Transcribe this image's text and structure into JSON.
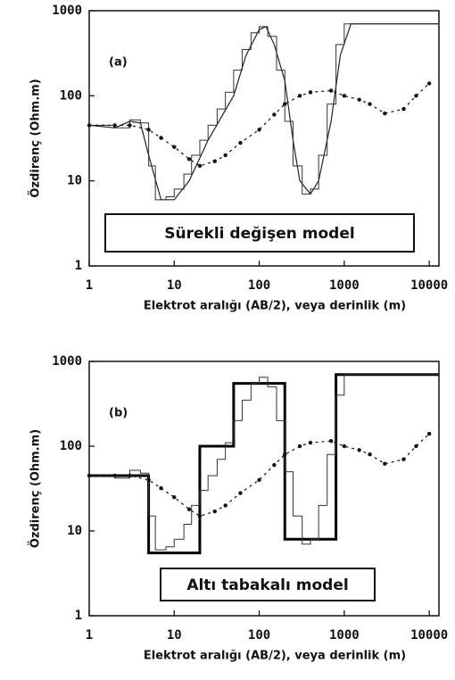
{
  "chart_data": [
    {
      "type": "line",
      "panel_label": "(a)",
      "model_label": "Sürekli değişen model",
      "xlabel": "Elektrot aralığı (AB/2), veya derinlik (m)",
      "ylabel": "Özdirenç  (Ohm.m)",
      "xlog": true,
      "ylog": true,
      "xlim": [
        1,
        13000
      ],
      "ylim": [
        1,
        1000
      ],
      "xticks": [
        1,
        10,
        100,
        1000,
        10000
      ],
      "yticks": [
        1,
        10,
        100,
        1000
      ],
      "series": [
        {
          "color": "#222222",
          "style": "solid",
          "width": 1.2,
          "x": [
            1,
            2,
            3,
            4,
            5,
            7,
            10,
            15,
            25,
            50,
            70,
            100,
            120,
            150,
            200,
            250,
            300,
            400,
            500,
            700,
            900,
            1200,
            13000
          ],
          "values": [
            45,
            42,
            50,
            48,
            20,
            6,
            6,
            10,
            30,
            100,
            300,
            600,
            650,
            400,
            150,
            30,
            10,
            7,
            10,
            50,
            300,
            700,
            700
          ]
        },
        {
          "color": "#333333",
          "style": "step",
          "width": 1,
          "bins": [
            1,
            2,
            3,
            4,
            5,
            6,
            8,
            10,
            13,
            16,
            20,
            25,
            32,
            40,
            50,
            63,
            80,
            100,
            126,
            160,
            200,
            250,
            320,
            400,
            500,
            630,
            800,
            1000,
            13000
          ],
          "values": [
            45,
            42,
            52,
            48,
            15,
            6,
            6.5,
            8,
            12,
            20,
            30,
            45,
            70,
            110,
            200,
            350,
            550,
            650,
            500,
            200,
            50,
            15,
            7,
            8,
            20,
            80,
            400,
            700
          ]
        },
        {
          "color": "#111111",
          "style": "dotted",
          "width": 1.2,
          "markers": true,
          "x": [
            1,
            2,
            3,
            5,
            7,
            10,
            15,
            20,
            30,
            40,
            60,
            100,
            150,
            200,
            300,
            400,
            700,
            1000,
            1500,
            2000,
            3000,
            5000,
            7000,
            10000
          ],
          "values": [
            45,
            45,
            45,
            40,
            32,
            25,
            18,
            15,
            17,
            20,
            28,
            40,
            60,
            80,
            100,
            110,
            115,
            100,
            90,
            80,
            62,
            70,
            100,
            140
          ]
        }
      ]
    },
    {
      "type": "line",
      "panel_label": "(b)",
      "model_label": "Altı tabakalı model",
      "xlabel": "Elektrot aralığı (AB/2), veya derinlik (m)",
      "ylabel": "Özdirenç  (Ohm.m)",
      "xlog": true,
      "ylog": true,
      "xlim": [
        1,
        13000
      ],
      "ylim": [
        1,
        1000
      ],
      "xticks": [
        1,
        10,
        100,
        1000,
        10000
      ],
      "yticks": [
        1,
        10,
        100,
        1000
      ],
      "series": [
        {
          "color": "#000000",
          "style": "step",
          "width": 3,
          "bins": [
            1,
            5,
            20,
            50,
            200,
            800,
            13000
          ],
          "values": [
            45,
            5.5,
            100,
            550,
            8,
            700
          ]
        },
        {
          "color": "#333333",
          "style": "step",
          "width": 1,
          "bins": [
            1,
            2,
            3,
            4,
            5,
            6,
            8,
            10,
            13,
            16,
            20,
            25,
            32,
            40,
            50,
            63,
            80,
            100,
            126,
            160,
            200,
            250,
            320,
            400,
            500,
            630,
            800,
            1000,
            13000
          ],
          "values": [
            45,
            42,
            52,
            48,
            15,
            6,
            6.5,
            8,
            12,
            20,
            30,
            45,
            70,
            110,
            200,
            350,
            550,
            650,
            500,
            200,
            50,
            15,
            7,
            8,
            20,
            80,
            400,
            700
          ]
        },
        {
          "color": "#111111",
          "style": "dotted",
          "width": 1.2,
          "markers": true,
          "x": [
            1,
            2,
            3,
            5,
            7,
            10,
            15,
            20,
            30,
            40,
            60,
            100,
            150,
            200,
            300,
            400,
            700,
            1000,
            1500,
            2000,
            3000,
            5000,
            7000,
            10000
          ],
          "values": [
            45,
            45,
            45,
            40,
            32,
            25,
            18,
            15,
            17,
            20,
            28,
            40,
            60,
            80,
            100,
            110,
            115,
            100,
            90,
            80,
            62,
            70,
            100,
            140
          ]
        }
      ]
    }
  ]
}
